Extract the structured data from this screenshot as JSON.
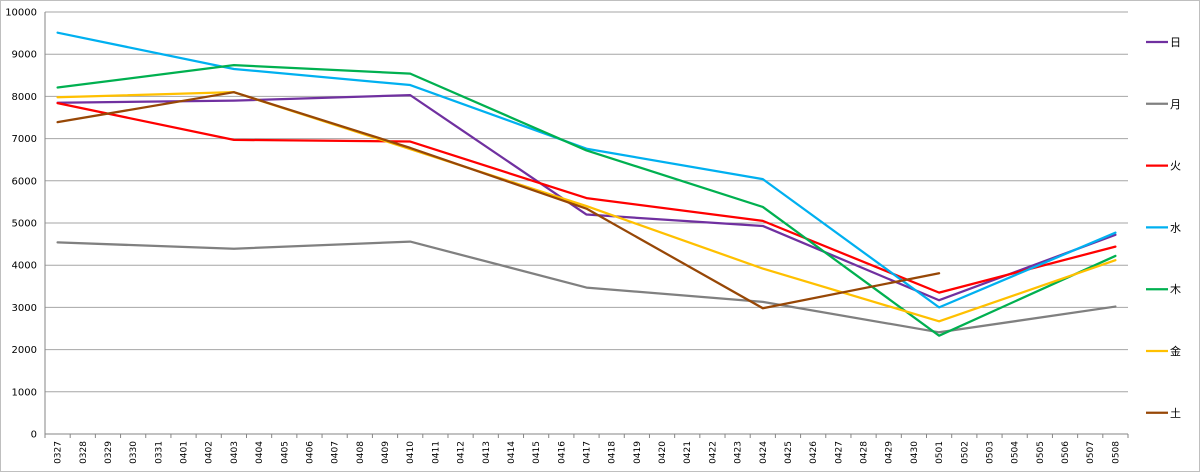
{
  "chart_data": {
    "type": "line",
    "title": "",
    "xlabel": "",
    "ylabel": "",
    "ylim": [
      0,
      10000
    ],
    "yticks": [
      0,
      1000,
      2000,
      3000,
      4000,
      5000,
      6000,
      7000,
      8000,
      9000,
      10000
    ],
    "grid": true,
    "legend_position": "right",
    "categories": [
      "0327",
      "0328",
      "0329",
      "0330",
      "0331",
      "0401",
      "0402",
      "0403",
      "0404",
      "0405",
      "0406",
      "0407",
      "0408",
      "0409",
      "0410",
      "0411",
      "0412",
      "0413",
      "0414",
      "0415",
      "0416",
      "0417",
      "0418",
      "0419",
      "0420",
      "0421",
      "0422",
      "0423",
      "0424",
      "0425",
      "0426",
      "0427",
      "0428",
      "0429",
      "0430",
      "0501",
      "0502",
      "0503",
      "0504",
      "0505",
      "0506",
      "0507",
      "0508"
    ],
    "series": [
      {
        "name": "日",
        "color": "#7030a0",
        "points": [
          [
            "0327",
            7850
          ],
          [
            "0403",
            7900
          ],
          [
            "0410",
            8030
          ],
          [
            "0417",
            5200
          ],
          [
            "0424",
            4930
          ],
          [
            "0501",
            3170
          ],
          [
            "0508",
            4720
          ]
        ]
      },
      {
        "name": "月",
        "color": "#808080",
        "points": [
          [
            "0327",
            4540
          ],
          [
            "0403",
            4390
          ],
          [
            "0410",
            4560
          ],
          [
            "0417",
            3470
          ],
          [
            "0424",
            3130
          ],
          [
            "0501",
            2410
          ],
          [
            "0508",
            3020
          ]
        ]
      },
      {
        "name": "火",
        "color": "#ff0000",
        "points": [
          [
            "0327",
            7840
          ],
          [
            "0403",
            6970
          ],
          [
            "0410",
            6930
          ],
          [
            "0417",
            5590
          ],
          [
            "0424",
            5050
          ],
          [
            "0501",
            3350
          ],
          [
            "0508",
            4440
          ]
        ]
      },
      {
        "name": "水",
        "color": "#00b0f0",
        "points": [
          [
            "0327",
            9510
          ],
          [
            "0403",
            8650
          ],
          [
            "0410",
            8270
          ],
          [
            "0417",
            6760
          ],
          [
            "0424",
            6040
          ],
          [
            "0501",
            3000
          ],
          [
            "0508",
            4770
          ]
        ]
      },
      {
        "name": "木",
        "color": "#00b050",
        "points": [
          [
            "0327",
            8210
          ],
          [
            "0403",
            8740
          ],
          [
            "0410",
            8540
          ],
          [
            "0417",
            6720
          ],
          [
            "0424",
            5380
          ],
          [
            "0501",
            2330
          ],
          [
            "0508",
            4220
          ]
        ]
      },
      {
        "name": "金",
        "color": "#ffc000",
        "points": [
          [
            "0327",
            7980
          ],
          [
            "0403",
            8100
          ],
          [
            "0417",
            5400
          ],
          [
            "0424",
            3920
          ],
          [
            "0501",
            2670
          ],
          [
            "0508",
            4120
          ]
        ]
      },
      {
        "name": "土",
        "color": "#974706",
        "points": [
          [
            "0327",
            7390
          ],
          [
            "0403",
            8100
          ],
          [
            "0410",
            6780
          ],
          [
            "0417",
            5340
          ],
          [
            "0424",
            2980
          ],
          [
            "0501",
            3810
          ]
        ]
      }
    ]
  }
}
